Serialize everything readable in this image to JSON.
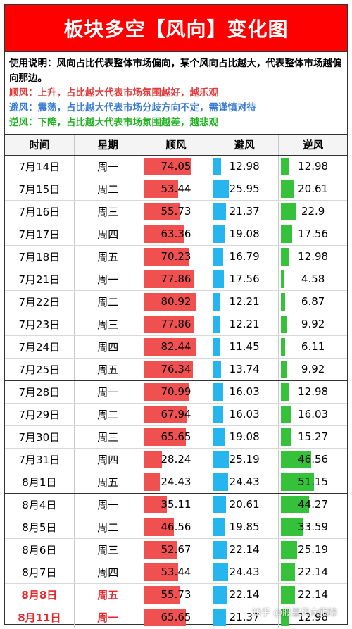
{
  "title": "板块多空【风向】变化图",
  "description": {
    "main": "使用说明：风向占比代表整体市场偏向，某个风向占比越大，代表整体市场越偏向那边。",
    "shun": "顺风：上升，占比越大代表市场氛围越好，越乐观",
    "bi": "避风：震荡，占比越大代表市场分歧方向不定，需谨慎对待",
    "ni": "逆风：下降，占比越大代表市场氛围越差，越悲观"
  },
  "headers": [
    "时间",
    "星期",
    "顺风",
    "避风",
    "逆风"
  ],
  "colors": {
    "title_bg": "#ff0000",
    "shun": "#f05050",
    "bi": "#27b5ef",
    "ni": "#35c23a",
    "highlight": "#e8262a"
  },
  "rows": [
    {
      "date": "7月14日",
      "day": "周一",
      "shun": "74.05",
      "bi": "12.98",
      "ni": "12.98"
    },
    {
      "date": "7月15日",
      "day": "周二",
      "shun": "53.44",
      "bi": "25.95",
      "ni": "20.61"
    },
    {
      "date": "7月16日",
      "day": "周三",
      "shun": "55.73",
      "bi": "21.37",
      "ni": "22.9"
    },
    {
      "date": "7月17日",
      "day": "周四",
      "shun": "63.36",
      "bi": "19.08",
      "ni": "17.56"
    },
    {
      "date": "7月18日",
      "day": "周五",
      "shun": "70.23",
      "bi": "16.79",
      "ni": "12.98"
    },
    {
      "date": "7月21日",
      "day": "周一",
      "shun": "77.86",
      "bi": "17.56",
      "ni": "4.58"
    },
    {
      "date": "7月22日",
      "day": "周二",
      "shun": "80.92",
      "bi": "12.21",
      "ni": "6.87"
    },
    {
      "date": "7月23日",
      "day": "周三",
      "shun": "77.86",
      "bi": "12.21",
      "ni": "9.92"
    },
    {
      "date": "7月24日",
      "day": "周四",
      "shun": "82.44",
      "bi": "11.45",
      "ni": "6.11"
    },
    {
      "date": "7月25日",
      "day": "周五",
      "shun": "76.34",
      "bi": "13.74",
      "ni": "9.92"
    },
    {
      "date": "7月28日",
      "day": "周一",
      "shun": "70.99",
      "bi": "16.03",
      "ni": "12.98"
    },
    {
      "date": "7月29日",
      "day": "周二",
      "shun": "67.94",
      "bi": "16.03",
      "ni": "16.03"
    },
    {
      "date": "7月30日",
      "day": "周三",
      "shun": "65.65",
      "bi": "19.08",
      "ni": "15.27"
    },
    {
      "date": "7月31日",
      "day": "周四",
      "shun": "28.24",
      "bi": "25.19",
      "ni": "46.56"
    },
    {
      "date": "8月1日",
      "day": "周五",
      "shun": "24.43",
      "bi": "24.43",
      "ni": "51.15"
    },
    {
      "date": "8月4日",
      "day": "周一",
      "shun": "35.11",
      "bi": "20.61",
      "ni": "44.27"
    },
    {
      "date": "8月5日",
      "day": "周二",
      "shun": "46.56",
      "bi": "19.85",
      "ni": "33.59"
    },
    {
      "date": "8月6日",
      "day": "周三",
      "shun": "52.67",
      "bi": "22.14",
      "ni": "25.19"
    },
    {
      "date": "8月7日",
      "day": "周四",
      "shun": "53.44",
      "bi": "24.43",
      "ni": "22.14"
    },
    {
      "date": "8月8日",
      "day": "周五",
      "shun": "55.73",
      "bi": "22.14",
      "ni": "22.14",
      "highlight": true
    },
    {
      "date": "8月11日",
      "day": "周一",
      "shun": "65.65",
      "bi": "21.37",
      "ni": "12.98",
      "highlight": true
    }
  ],
  "watermark": "知乎 @股基风向跟踪"
}
